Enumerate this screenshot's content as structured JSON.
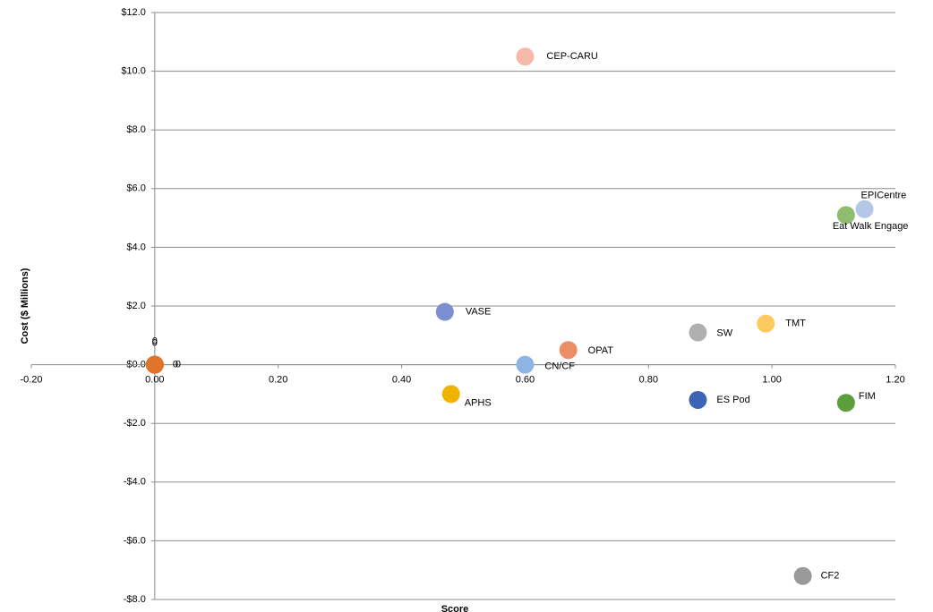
{
  "chart_data": {
    "type": "scatter",
    "xlabel": "Score",
    "ylabel": "Cost ($ Millions)",
    "xlim": [
      -0.2,
      1.2
    ],
    "ylim": [
      -8,
      12
    ],
    "xticks": [
      {
        "value": -0.2,
        "label": "-0.20"
      },
      {
        "value": 0,
        "label": "0.00"
      },
      {
        "value": 0.2,
        "label": "0.20"
      },
      {
        "value": 0.4,
        "label": "0.40"
      },
      {
        "value": 0.6,
        "label": "0.60"
      },
      {
        "value": 0.8,
        "label": "0.80"
      },
      {
        "value": 1,
        "label": "1.00"
      },
      {
        "value": 1.2,
        "label": "1.20"
      }
    ],
    "yticks": [
      {
        "value": -8,
        "label": "-$8.0"
      },
      {
        "value": -6,
        "label": "-$6.0"
      },
      {
        "value": -4,
        "label": "-$4.0"
      },
      {
        "value": -2,
        "label": "-$2.0"
      },
      {
        "value": 0,
        "label": "$0.0"
      },
      {
        "value": 2,
        "label": "$2.0"
      },
      {
        "value": 4,
        "label": "$4.0"
      },
      {
        "value": 6,
        "label": "$6.0"
      },
      {
        "value": 8,
        "label": "$8.0"
      },
      {
        "value": 10,
        "label": "$10.0"
      },
      {
        "value": 12,
        "label": "$12.0"
      }
    ],
    "grid": true,
    "labels": [
      "CEP-CARU",
      "EPICentre",
      "Eat Walk Engage",
      "VASE",
      "TMT",
      "SW",
      "OPAT",
      "CN/CF",
      "APHS",
      "ES Pod",
      "FIM",
      "CF2",
      "0",
      "0",
      "0",
      "0"
    ],
    "x": [
      0.6,
      1.15,
      1.12,
      0.47,
      0.99,
      0.88,
      0.67,
      0.6,
      0.48,
      0.88,
      1.12,
      1.05,
      0,
      0,
      0,
      0
    ],
    "values": [
      10.5,
      5.3,
      5.1,
      1.8,
      1.4,
      1.1,
      0.5,
      0,
      -1.0,
      -1.2,
      -1.3,
      -7.2,
      0,
      0,
      0,
      0
    ],
    "colors": [
      "#f4b9a8",
      "#b4c7e7",
      "#8fbc6f",
      "#7b8fd0",
      "#fec95f",
      "#b0b0b0",
      "#ed8d66",
      "#8eb4e3",
      "#f0b400",
      "#3b64b6",
      "#5c9e3c",
      "#999999",
      "#e07428",
      "#e07428",
      "#e07428",
      "#e07428"
    ]
  }
}
